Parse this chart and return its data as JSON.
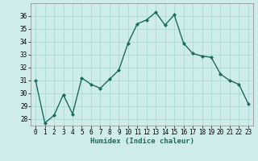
{
  "x": [
    0,
    1,
    2,
    3,
    4,
    5,
    6,
    7,
    8,
    9,
    10,
    11,
    12,
    13,
    14,
    15,
    16,
    17,
    18,
    19,
    20,
    21,
    22,
    23
  ],
  "y": [
    31.0,
    27.7,
    28.3,
    29.9,
    28.4,
    31.2,
    30.7,
    30.4,
    31.1,
    31.8,
    33.9,
    35.4,
    35.7,
    36.3,
    35.3,
    36.1,
    33.9,
    33.1,
    32.9,
    32.8,
    31.5,
    31.0,
    30.7,
    29.2
  ],
  "line_color": "#1a6b5e",
  "marker": "D",
  "marker_size": 2.0,
  "bg_color": "#ceecea",
  "grid_color": "#aed8d4",
  "xlabel": "Humidex (Indice chaleur)",
  "xlim": [
    -0.5,
    23.5
  ],
  "ylim": [
    27.5,
    37.0
  ],
  "yticks": [
    28,
    29,
    30,
    31,
    32,
    33,
    34,
    35,
    36
  ],
  "xticks": [
    0,
    1,
    2,
    3,
    4,
    5,
    6,
    7,
    8,
    9,
    10,
    11,
    12,
    13,
    14,
    15,
    16,
    17,
    18,
    19,
    20,
    21,
    22,
    23
  ],
  "tick_fontsize": 5.5,
  "label_fontsize": 6.5,
  "line_width": 1.0
}
